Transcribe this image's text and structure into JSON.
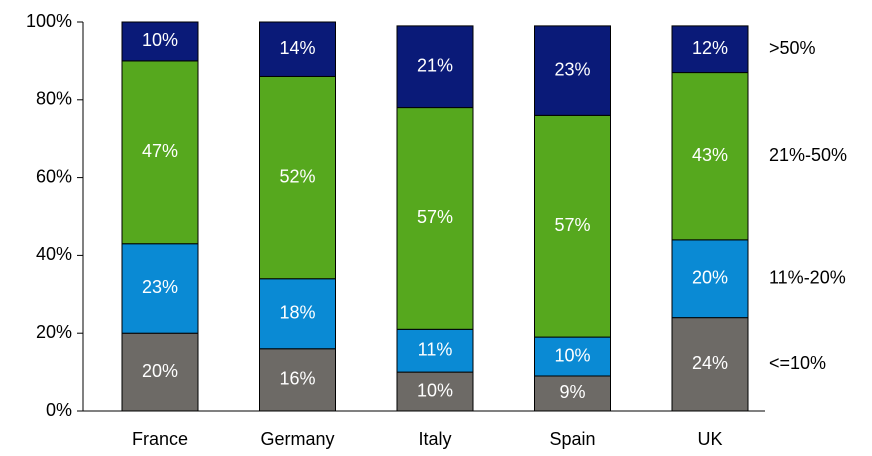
{
  "chart_data": {
    "type": "stacked_bar",
    "categories": [
      "France",
      "Germany",
      "Italy",
      "Spain",
      "UK"
    ],
    "series": [
      {
        "name": "<=10%",
        "color": "#6d6a66",
        "values": [
          20,
          16,
          10,
          9,
          24
        ],
        "value_labels": [
          "20%",
          "16%",
          "10%",
          "9%",
          "24%"
        ]
      },
      {
        "name": "11%-20%",
        "color": "#0a8ad4",
        "values": [
          23,
          18,
          11,
          10,
          20
        ],
        "value_labels": [
          "23%",
          "18%",
          "11%",
          "10%",
          "20%"
        ]
      },
      {
        "name": "21%-50%",
        "color": "#56a81e",
        "values": [
          47,
          52,
          57,
          57,
          43
        ],
        "value_labels": [
          "47%",
          "52%",
          "57%",
          "57%",
          "43%"
        ]
      },
      {
        "name": ">50%",
        "color": "#0a1a78",
        "values": [
          10,
          14,
          21,
          23,
          12
        ],
        "value_labels": [
          "10%",
          "14%",
          "21%",
          "23%",
          "12%"
        ]
      }
    ],
    "ylim": [
      0,
      100
    ],
    "yticks": [
      {
        "value": 0,
        "label": "0%"
      },
      {
        "value": 20,
        "label": "20%"
      },
      {
        "value": 40,
        "label": "40%"
      },
      {
        "value": 60,
        "label": "60%"
      },
      {
        "value": 80,
        "label": "80%"
      },
      {
        "value": 100,
        "label": "100%"
      }
    ],
    "legend": "right"
  }
}
